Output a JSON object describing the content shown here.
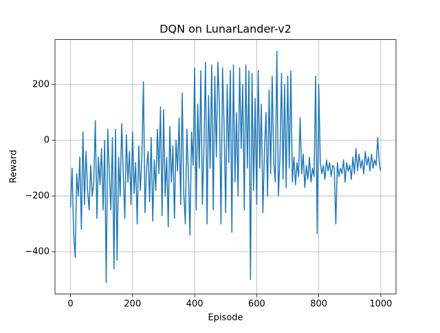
{
  "chart_data": {
    "type": "line",
    "title": "DQN on LunarLander-v2",
    "x_label": "Episode",
    "y_label": "Reward",
    "x": [
      0,
      5,
      10,
      15,
      20,
      25,
      30,
      35,
      40,
      45,
      50,
      55,
      60,
      65,
      70,
      75,
      80,
      85,
      90,
      95,
      100,
      105,
      110,
      115,
      120,
      125,
      130,
      135,
      140,
      145,
      150,
      155,
      160,
      165,
      170,
      175,
      180,
      185,
      190,
      195,
      200,
      205,
      210,
      215,
      220,
      225,
      230,
      235,
      240,
      245,
      250,
      255,
      260,
      265,
      270,
      275,
      280,
      285,
      290,
      295,
      300,
      305,
      310,
      315,
      320,
      325,
      330,
      335,
      340,
      345,
      350,
      355,
      360,
      365,
      370,
      375,
      380,
      385,
      390,
      395,
      400,
      405,
      410,
      415,
      420,
      425,
      430,
      435,
      440,
      445,
      450,
      455,
      460,
      465,
      470,
      475,
      480,
      485,
      490,
      495,
      500,
      505,
      510,
      515,
      520,
      525,
      530,
      535,
      540,
      545,
      550,
      555,
      560,
      565,
      570,
      575,
      580,
      585,
      590,
      595,
      600,
      605,
      610,
      615,
      620,
      625,
      630,
      635,
      640,
      645,
      650,
      655,
      660,
      665,
      670,
      675,
      680,
      685,
      690,
      695,
      700,
      705,
      710,
      715,
      720,
      725,
      730,
      735,
      740,
      745,
      750,
      755,
      760,
      765,
      770,
      775,
      780,
      785,
      790,
      795,
      800,
      805,
      810,
      815,
      820,
      825,
      830,
      835,
      840,
      845,
      850,
      855,
      860,
      865,
      870,
      875,
      880,
      885,
      890,
      895,
      900,
      905,
      910,
      915,
      920,
      925,
      930,
      935,
      940,
      945,
      950,
      955,
      960,
      965,
      970,
      975,
      980,
      985,
      990,
      995,
      999
    ],
    "series": [
      {
        "name": "Reward",
        "color": "#1f77b4",
        "values": [
          -240,
          -100,
          -330,
          -420,
          -120,
          -200,
          -60,
          -320,
          30,
          -230,
          -40,
          -180,
          -250,
          -90,
          -200,
          -150,
          70,
          -280,
          -60,
          -160,
          -30,
          -250,
          0,
          -510,
          40,
          -120,
          -250,
          10,
          -460,
          40,
          -430,
          -60,
          -200,
          60,
          -120,
          -280,
          20,
          -150,
          -40,
          -230,
          30,
          -190,
          -80,
          -300,
          -20,
          -180,
          -60,
          210,
          -260,
          -100,
          -40,
          -220,
          10,
          -290,
          -70,
          -180,
          40,
          -120,
          120,
          -270,
          110,
          -200,
          -60,
          -310,
          50,
          -150,
          -20,
          -280,
          0,
          -110,
          80,
          -230,
          170,
          -190,
          -300,
          40,
          -120,
          -340,
          30,
          -90,
          260,
          -250,
          130,
          -100,
          250,
          -230,
          -30,
          280,
          -300,
          160,
          -100,
          270,
          -250,
          230,
          -60,
          280,
          120,
          -300,
          260,
          50,
          -260,
          200,
          -80,
          250,
          -330,
          270,
          -150,
          100,
          -200,
          260,
          -30,
          200,
          -250,
          270,
          -100,
          250,
          -500,
          240,
          -180,
          150,
          -230,
          250,
          -100,
          130,
          -260,
          -40,
          100,
          -200,
          180,
          -120,
          230,
          -80,
          -150,
          320,
          -200,
          -60,
          240,
          -140,
          200,
          -170,
          230,
          -100,
          250,
          -150,
          -60,
          -160,
          -80,
          -130,
          80,
          -120,
          -50,
          -170,
          -90,
          -140,
          -60,
          -150,
          -100,
          -130,
          230,
          -335,
          200,
          -80,
          -120,
          -90,
          -140,
          -70,
          -110,
          -80,
          -130,
          -90,
          -100,
          -300,
          -80,
          -130,
          -100,
          -120,
          -70,
          -150,
          -80,
          -110,
          -90,
          -140,
          -60,
          -120,
          -30,
          -110,
          -50,
          -100,
          -70,
          -120,
          -40,
          -90,
          -60,
          -110,
          -50,
          -100,
          -70,
          -90,
          10,
          -80,
          -110
        ]
      }
    ],
    "xlim": [
      -50,
      1049
    ],
    "ylim": [
      -551,
      361
    ],
    "xticks": [
      0,
      200,
      400,
      600,
      800,
      1000
    ],
    "yticks": [
      {
        "value": -400,
        "label": "−400"
      },
      {
        "value": -200,
        "label": "−200"
      },
      0,
      200
    ],
    "grid": true
  }
}
